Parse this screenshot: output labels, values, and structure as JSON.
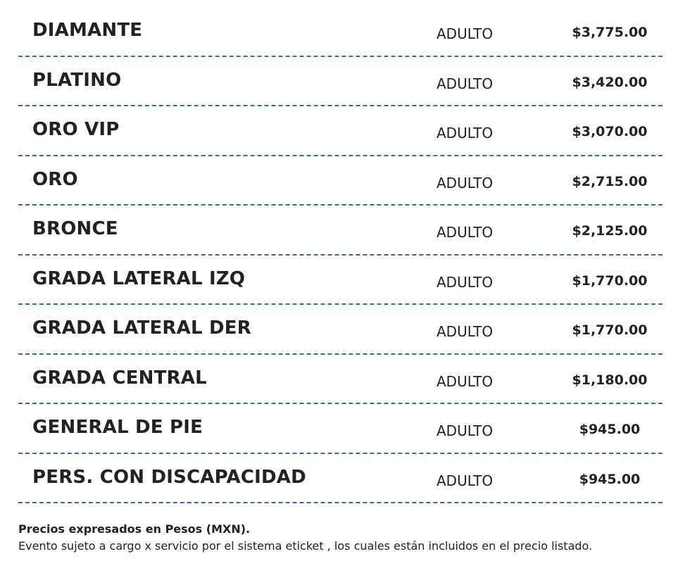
{
  "prices": {
    "rows": [
      {
        "zone": "DIAMANTE",
        "type": "ADULTO",
        "price": "$3,775.00"
      },
      {
        "zone": "PLATINO",
        "type": "ADULTO",
        "price": "$3,420.00"
      },
      {
        "zone": "ORO VIP",
        "type": "ADULTO",
        "price": "$3,070.00"
      },
      {
        "zone": "ORO",
        "type": "ADULTO",
        "price": "$2,715.00"
      },
      {
        "zone": "BRONCE",
        "type": "ADULTO",
        "price": "$2,125.00"
      },
      {
        "zone": "GRADA LATERAL IZQ",
        "type": "ADULTO",
        "price": "$1,770.00"
      },
      {
        "zone": "GRADA LATERAL DER",
        "type": "ADULTO",
        "price": "$1,770.00"
      },
      {
        "zone": "GRADA CENTRAL",
        "type": "ADULTO",
        "price": "$1,180.00"
      },
      {
        "zone": "GENERAL DE PIE",
        "type": "ADULTO",
        "price": "$945.00"
      },
      {
        "zone": "PERS. CON DISCAPACIDAD",
        "type": "ADULTO",
        "price": "$945.00"
      }
    ]
  },
  "notes": {
    "currency": "Precios expresados en Pesos (MXN).",
    "service_charge": "Evento sujeto a cargo x servicio por el sistema eticket , los cuales están incluidos en el precio listado."
  },
  "colors": {
    "divider": "#3d6a98",
    "text": "#222222",
    "background": "#ffffff"
  }
}
